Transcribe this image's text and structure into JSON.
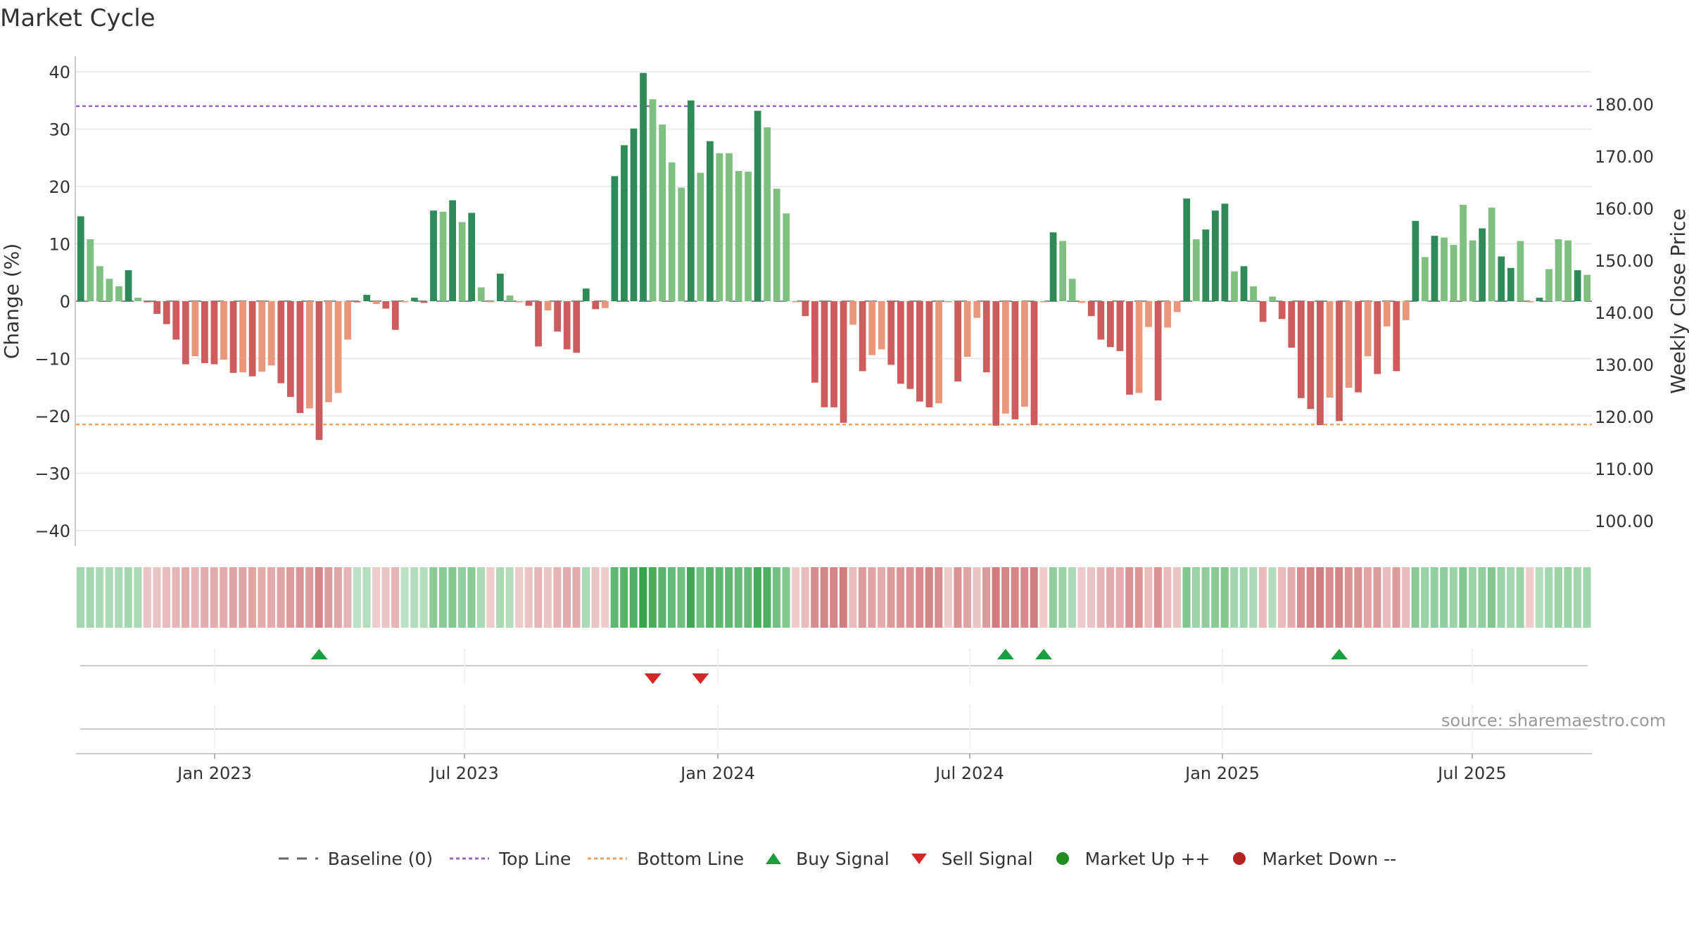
{
  "title": "Market Cycle",
  "source": "source: sharemaestro.com",
  "colors": {
    "up_strong": "#2e8b57",
    "up_light": "#7fbf7f",
    "down_strong": "#cd5c5c",
    "down_light": "#e9967a",
    "top_line": "#9467bd",
    "bottom_line": "#f0a35e",
    "baseline": "#666666",
    "buy": "#1a9e3f",
    "sell": "#d62728",
    "market_up": "#228b22",
    "market_down": "#b22222"
  },
  "legend": [
    {
      "icon": "baseline-dash-icon",
      "label": "Baseline (0)"
    },
    {
      "icon": "top-line-icon",
      "label": "Top Line"
    },
    {
      "icon": "bottom-line-icon",
      "label": "Bottom Line"
    },
    {
      "icon": "buy-triangle-icon",
      "label": "Buy Signal"
    },
    {
      "icon": "sell-triangle-icon",
      "label": "Sell Signal"
    },
    {
      "icon": "market-up-dot-icon",
      "label": "Market Up ++"
    },
    {
      "icon": "market-down-dot-icon",
      "label": "Market Down --"
    }
  ],
  "chart_data": {
    "type": "bar",
    "title": "Market Cycle",
    "ylabel": "Change (%)",
    "y2label": "Weekly Close Price",
    "ylim": [
      -43,
      43
    ],
    "y2lim": [
      92.5,
      183
    ],
    "yticks": [
      "40",
      "30",
      "20",
      "10",
      "0",
      "−10",
      "−20",
      "−30",
      "−40"
    ],
    "y2ticks": [
      "180.00",
      "170.00",
      "160.00",
      "150.00",
      "140.00",
      "130.00",
      "120.00",
      "110.00",
      "100.00"
    ],
    "xticks": [
      "Jan 2023",
      "Jul 2023",
      "Jan 2024",
      "Jul 2024",
      "Jan 2025",
      "Jul 2025"
    ],
    "top_line": 34,
    "bottom_line": -21.5,
    "values": [
      14.8,
      10.8,
      6.1,
      3.9,
      2.6,
      5.4,
      0.6,
      -0.2,
      -2.2,
      -4.0,
      -6.7,
      -11.0,
      -9.6,
      -10.8,
      -11.0,
      -10.2,
      -12.5,
      -12.4,
      -13.1,
      -12.3,
      -11.2,
      -14.3,
      -16.7,
      -19.5,
      -18.7,
      -24.2,
      -17.6,
      -16.0,
      -6.7,
      -0.2,
      1.1,
      -0.5,
      -1.3,
      -5.0,
      -0.1,
      0.6,
      -0.3,
      15.8,
      15.6,
      17.6,
      13.8,
      15.4,
      2.4,
      -0.1,
      4.8,
      1.0,
      -0.2,
      -0.8,
      -7.9,
      -1.6,
      -5.3,
      -8.4,
      -9.0,
      2.2,
      -1.4,
      -1.2,
      21.8,
      27.2,
      30.1,
      39.8,
      35.2,
      30.8,
      24.2,
      19.8,
      35.0,
      22.4,
      27.9,
      25.8,
      25.8,
      22.7,
      22.6,
      33.2,
      30.3,
      19.6,
      15.3,
      -0.1,
      -2.6,
      -14.2,
      -18.5,
      -18.5,
      -21.2,
      -4.1,
      -12.2,
      -9.4,
      -8.4,
      -11.1,
      -14.4,
      -15.3,
      -17.5,
      -18.5,
      -17.8,
      -0.1,
      -14.0,
      -9.7,
      -2.9,
      -12.4,
      -21.7,
      -19.6,
      -20.6,
      -18.4,
      -21.6,
      -0.1,
      12.0,
      10.5,
      3.9,
      -0.3,
      -2.6,
      -6.7,
      -8.0,
      -8.7,
      -16.3,
      -16.0,
      -4.5,
      -17.3,
      -4.6,
      -1.9,
      17.9,
      10.8,
      12.5,
      15.8,
      17.0,
      5.2,
      6.1,
      2.6,
      -3.6,
      0.8,
      -3.1,
      -8.1,
      -16.9,
      -18.8,
      -21.6,
      -16.8,
      -20.9,
      -15.1,
      -15.9,
      -9.6,
      -12.7,
      -4.4,
      -12.2,
      -3.3,
      14.0,
      7.7,
      11.4,
      11.1,
      9.8,
      16.8,
      10.6,
      12.7,
      16.3,
      7.8,
      5.8,
      10.5,
      -0.1,
      0.6,
      5.6,
      10.8,
      10.6,
      5.4,
      4.6
    ],
    "strength": [
      "strong",
      "light",
      "light",
      "light",
      "light",
      "strong",
      "light",
      "strong",
      "strong",
      "strong",
      "strong",
      "strong",
      "light",
      "strong",
      "strong",
      "light",
      "strong",
      "light",
      "strong",
      "light",
      "light",
      "strong",
      "strong",
      "strong",
      "light",
      "strong",
      "light",
      "light",
      "light",
      "strong",
      "strong",
      "light",
      "strong",
      "strong",
      "light",
      "strong",
      "strong",
      "strong",
      "light",
      "strong",
      "light",
      "strong",
      "light",
      "light",
      "strong",
      "light",
      "light",
      "strong",
      "strong",
      "light",
      "strong",
      "strong",
      "strong",
      "strong",
      "strong",
      "light",
      "strong",
      "strong",
      "strong",
      "strong",
      "light",
      "light",
      "light",
      "light",
      "strong",
      "light",
      "strong",
      "light",
      "light",
      "light",
      "light",
      "strong",
      "light",
      "light",
      "light",
      "light",
      "strong",
      "strong",
      "strong",
      "strong",
      "strong",
      "light",
      "strong",
      "light",
      "light",
      "strong",
      "strong",
      "strong",
      "strong",
      "strong",
      "light",
      "light",
      "strong",
      "light",
      "light",
      "strong",
      "strong",
      "light",
      "strong",
      "light",
      "strong",
      "light",
      "strong",
      "light",
      "light",
      "light",
      "strong",
      "strong",
      "strong",
      "strong",
      "strong",
      "light",
      "light",
      "strong",
      "light",
      "light",
      "strong",
      "light",
      "strong",
      "strong",
      "strong",
      "light",
      "strong",
      "light",
      "strong",
      "light",
      "strong",
      "strong",
      "strong",
      "strong",
      "strong",
      "light",
      "strong",
      "light",
      "strong",
      "light",
      "strong",
      "light",
      "strong",
      "light",
      "strong",
      "light",
      "strong",
      "light",
      "light",
      "light",
      "light",
      "strong",
      "light",
      "strong",
      "strong",
      "light",
      "light",
      "strong",
      "light",
      "light",
      "light",
      "strong",
      "light",
      "light",
      "light"
    ],
    "heat_levels": [
      0.3,
      0.3,
      0.25,
      0.25,
      0.25,
      0.3,
      0.25,
      -0.2,
      -0.2,
      -0.25,
      -0.3,
      -0.35,
      -0.3,
      -0.35,
      -0.35,
      -0.35,
      -0.4,
      -0.4,
      -0.4,
      -0.35,
      -0.35,
      -0.4,
      -0.45,
      -0.5,
      -0.45,
      -0.6,
      -0.45,
      -0.4,
      -0.3,
      0.15,
      0.2,
      -0.15,
      -0.2,
      -0.3,
      0.15,
      0.2,
      0.2,
      0.45,
      0.45,
      0.5,
      0.4,
      0.45,
      0.25,
      -0.15,
      0.25,
      0.2,
      -0.15,
      -0.2,
      -0.3,
      -0.2,
      -0.3,
      -0.35,
      -0.35,
      0.25,
      -0.2,
      -0.15,
      0.7,
      0.75,
      0.8,
      0.95,
      0.85,
      0.75,
      0.65,
      0.6,
      0.9,
      0.6,
      0.75,
      0.7,
      0.7,
      0.65,
      0.65,
      0.85,
      0.8,
      0.6,
      0.5,
      -0.15,
      -0.25,
      -0.55,
      -0.6,
      -0.6,
      -0.65,
      -0.25,
      -0.45,
      -0.4,
      -0.35,
      -0.45,
      -0.5,
      -0.5,
      -0.55,
      -0.6,
      -0.55,
      -0.15,
      -0.5,
      -0.4,
      -0.2,
      -0.45,
      -0.65,
      -0.6,
      -0.6,
      -0.55,
      -0.65,
      -0.15,
      0.4,
      0.35,
      0.25,
      -0.15,
      -0.2,
      -0.3,
      -0.35,
      -0.35,
      -0.5,
      -0.5,
      -0.25,
      -0.5,
      -0.25,
      -0.2,
      0.5,
      0.35,
      0.4,
      0.45,
      0.5,
      0.3,
      0.3,
      0.25,
      -0.25,
      0.2,
      -0.25,
      -0.35,
      -0.55,
      -0.6,
      -0.65,
      -0.55,
      -0.6,
      -0.5,
      -0.5,
      -0.4,
      -0.45,
      -0.25,
      -0.45,
      -0.25,
      0.45,
      0.35,
      0.4,
      0.4,
      0.35,
      0.5,
      0.35,
      0.4,
      0.5,
      0.35,
      0.3,
      0.35,
      -0.15,
      0.2,
      0.3,
      0.35,
      0.35,
      0.3,
      0.3
    ],
    "buy_signals": [
      25,
      97,
      101,
      132
    ],
    "sell_signals": [
      60,
      65
    ],
    "market_up": [],
    "market_down": []
  }
}
